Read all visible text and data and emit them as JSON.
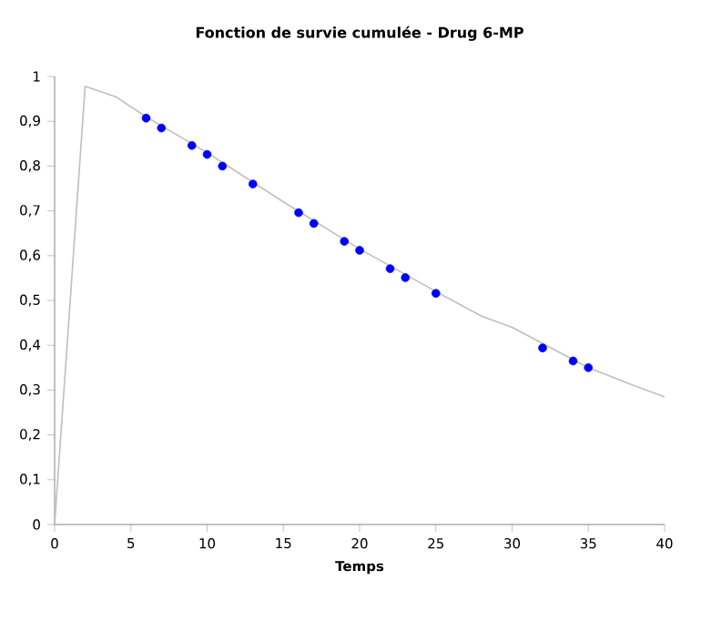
{
  "chart_data": {
    "type": "scatter",
    "title": "Fonction de survie cumulée - Drug 6-MP",
    "xlabel": "Temps",
    "series": [
      {
        "type": "line",
        "color": "#bfbfbf",
        "marker": "none",
        "x": [
          0,
          2,
          4,
          6,
          10,
          15,
          20,
          25,
          28,
          30,
          35,
          38,
          40
        ],
        "values": [
          0,
          0.978,
          0.955,
          0.91,
          0.83,
          0.72,
          0.615,
          0.52,
          0.465,
          0.44,
          0.35,
          0.31,
          0.285
        ]
      },
      {
        "color": "#0000ff",
        "marker": "circle",
        "x": [
          6,
          7,
          9,
          10,
          11,
          13,
          16,
          17,
          19,
          20,
          22,
          23,
          25,
          32,
          34,
          35
        ],
        "values": [
          0.907,
          0.885,
          0.846,
          0.826,
          0.8,
          0.76,
          0.696,
          0.672,
          0.632,
          0.612,
          0.571,
          0.551,
          0.516,
          0.394,
          0.365,
          0.35
        ]
      }
    ],
    "xlim": [
      0,
      40
    ],
    "ylim": [
      0,
      1
    ],
    "xticks": [
      0,
      5,
      10,
      15,
      20,
      25,
      30,
      35,
      40
    ],
    "yticks": [
      0,
      {
        "value": 0.1,
        "label": "0,1"
      },
      {
        "value": 0.2,
        "label": "0,2"
      },
      {
        "value": 0.3,
        "label": "0,3"
      },
      {
        "value": 0.4,
        "label": "0,4"
      },
      {
        "value": 0.5,
        "label": "0,5"
      },
      {
        "value": 0.6,
        "label": "0,6"
      },
      {
        "value": 0.7,
        "label": "0,7"
      },
      {
        "value": 0.8,
        "label": "0,8"
      },
      {
        "value": 0.9,
        "label": "0,9"
      },
      1
    ],
    "grid": false
  }
}
